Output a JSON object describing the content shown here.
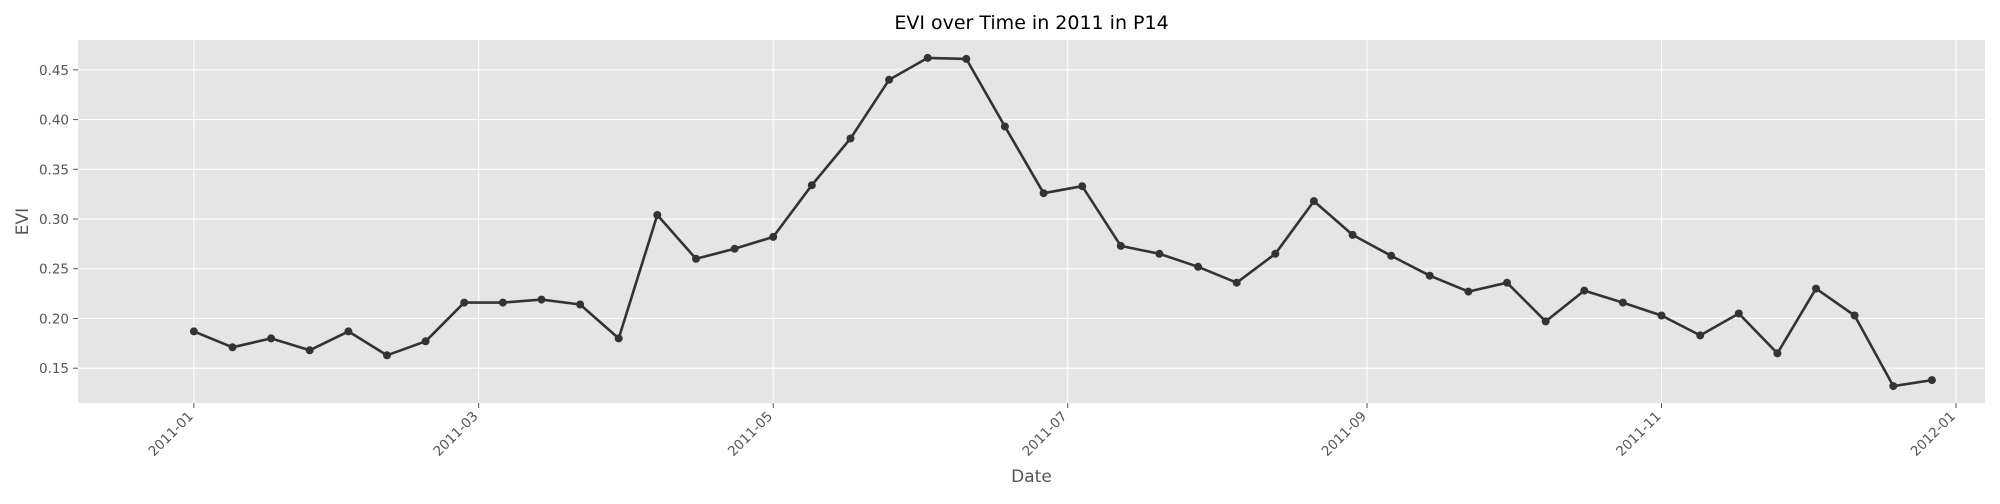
{
  "chart_data": {
    "type": "line",
    "title": "EVI over Time in 2011 in P14",
    "xlabel": "Date",
    "ylabel": "EVI",
    "x_type": "date",
    "xlim": [
      "2010-12-08",
      "2012-01-07"
    ],
    "ylim": [
      0.115,
      0.48
    ],
    "grid": true,
    "legend": "none",
    "colors": {
      "line": "#333333",
      "plot_background": "#e5e5e5",
      "grid": "#ffffff",
      "figure_background": "#ffffff"
    },
    "x_ticks": [
      {
        "date": "2011-01-01",
        "label": "2011-01"
      },
      {
        "date": "2011-03-01",
        "label": "2011-03"
      },
      {
        "date": "2011-05-01",
        "label": "2011-05"
      },
      {
        "date": "2011-07-01",
        "label": "2011-07"
      },
      {
        "date": "2011-09-01",
        "label": "2011-09"
      },
      {
        "date": "2011-11-01",
        "label": "2011-11"
      },
      {
        "date": "2012-01-01",
        "label": "2012-01"
      }
    ],
    "y_ticks": [
      {
        "value": 0.15,
        "label": "0.15"
      },
      {
        "value": 0.2,
        "label": "0.20"
      },
      {
        "value": 0.25,
        "label": "0.25"
      },
      {
        "value": 0.3,
        "label": "0.30"
      },
      {
        "value": 0.35,
        "label": "0.35"
      },
      {
        "value": 0.4,
        "label": "0.40"
      },
      {
        "value": 0.45,
        "label": "0.45"
      }
    ],
    "series": [
      {
        "x": [
          "2011-01-01",
          "2011-01-09",
          "2011-01-17",
          "2011-01-25",
          "2011-02-02",
          "2011-02-10",
          "2011-02-18",
          "2011-02-26",
          "2011-03-06",
          "2011-03-14",
          "2011-03-22",
          "2011-03-30",
          "2011-04-07",
          "2011-04-15",
          "2011-04-23",
          "2011-05-01",
          "2011-05-09",
          "2011-05-17",
          "2011-05-25",
          "2011-06-02",
          "2011-06-10",
          "2011-06-18",
          "2011-06-26",
          "2011-07-04",
          "2011-07-12",
          "2011-07-20",
          "2011-07-28",
          "2011-08-05",
          "2011-08-13",
          "2011-08-21",
          "2011-08-29",
          "2011-09-06",
          "2011-09-14",
          "2011-09-22",
          "2011-09-30",
          "2011-10-08",
          "2011-10-16",
          "2011-10-24",
          "2011-11-01",
          "2011-11-09",
          "2011-11-17",
          "2011-11-25",
          "2011-12-03",
          "2011-12-11",
          "2011-12-19",
          "2011-12-27"
        ],
        "values": [
          0.187,
          0.171,
          0.18,
          0.168,
          0.187,
          0.163,
          0.177,
          0.216,
          0.216,
          0.219,
          0.214,
          0.18,
          0.304,
          0.26,
          0.27,
          0.282,
          0.334,
          0.381,
          0.44,
          0.462,
          0.461,
          0.393,
          0.326,
          0.333,
          0.273,
          0.265,
          0.252,
          0.236,
          0.265,
          0.318,
          0.284,
          0.263,
          0.243,
          0.227,
          0.236,
          0.197,
          0.228,
          0.216,
          0.203,
          0.183,
          0.205,
          0.165,
          0.23,
          0.203,
          0.132,
          0.138
        ]
      }
    ]
  }
}
